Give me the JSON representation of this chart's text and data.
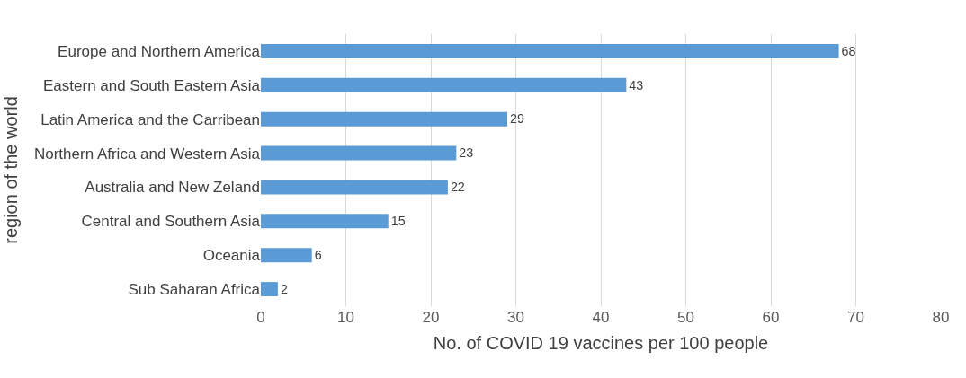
{
  "chart_data": {
    "type": "bar",
    "orientation": "horizontal",
    "categories": [
      "Europe and Northern America",
      "Eastern and South Eastern Asia",
      "Latin America and the Carribean",
      "Northern Africa and Western Asia",
      "Australia and New Zeland",
      "Central and Southern Asia",
      "Oceania",
      "Sub Saharan Africa"
    ],
    "values": [
      68,
      43,
      29,
      23,
      22,
      15,
      6,
      2
    ],
    "color": "#5b9bd5",
    "xlabel": "No. of COVID 19 vaccines per 100 people",
    "ylabel": "region of the world",
    "xlim": [
      0,
      80
    ],
    "xticks": [
      0,
      10,
      20,
      30,
      40,
      50,
      60,
      70,
      80
    ],
    "grid": "x",
    "data_labels": true,
    "legend": false
  }
}
